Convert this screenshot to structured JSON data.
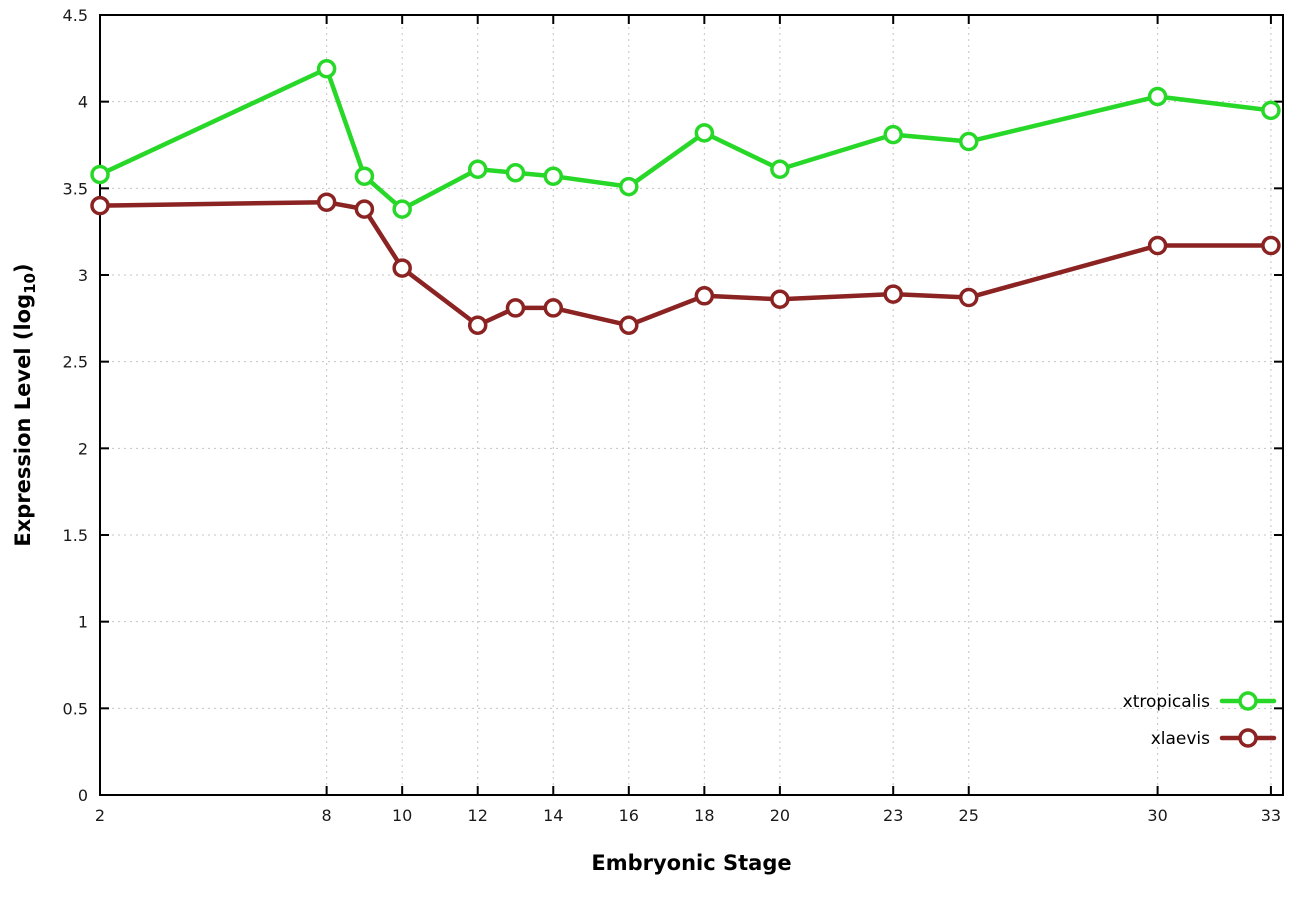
{
  "figure": {
    "background": "#ffffff",
    "border_color": "#000000",
    "grid_color": "#c4c4c4",
    "tick_color": "#000000",
    "tick_label_color": "#1a1a1a"
  },
  "chart_data": {
    "type": "line",
    "title": "",
    "xlabel": "Embryonic Stage",
    "ylabel": "Expression Level (log10)",
    "ylabel_parts": {
      "pre": "Expression Level (log",
      "sub": "10",
      "post": ")"
    },
    "x": [
      2,
      8,
      9,
      10,
      12,
      13,
      14,
      16,
      18,
      20,
      23,
      25,
      30,
      33
    ],
    "xtick_labels": [
      2,
      8,
      10,
      12,
      14,
      16,
      18,
      20,
      23,
      25,
      30,
      33
    ],
    "yticks": [
      0,
      0.5,
      1,
      1.5,
      2,
      2.5,
      3,
      3.5,
      4,
      4.5
    ],
    "ytick_labels": [
      "0",
      "0.5",
      "1",
      "1.5",
      "2",
      "2.5",
      "3",
      "3.5",
      "4",
      "4.5"
    ],
    "xlim": [
      2,
      33.32
    ],
    "ylim": [
      0,
      4.5
    ],
    "grid": true,
    "legend_position": "bottom-right",
    "series": [
      {
        "name": "xtropicalis",
        "color": "#28d828",
        "marker": "open-circle",
        "values": [
          3.58,
          4.19,
          3.57,
          3.38,
          3.61,
          3.59,
          3.57,
          3.51,
          3.82,
          3.61,
          3.81,
          3.77,
          4.03,
          3.95
        ]
      },
      {
        "name": "xlaevis",
        "color": "#8b2323",
        "marker": "open-circle",
        "values": [
          3.4,
          3.42,
          3.38,
          3.04,
          2.71,
          2.81,
          2.81,
          2.71,
          2.88,
          2.86,
          2.89,
          2.87,
          3.17,
          3.17
        ]
      }
    ]
  }
}
